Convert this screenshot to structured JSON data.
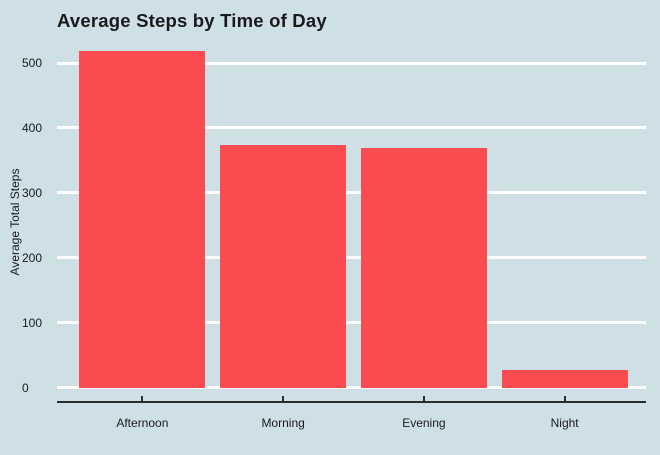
{
  "chart_data": {
    "type": "bar",
    "title": "Average Steps by Time of Day",
    "categories": [
      "Afternoon",
      "Morning",
      "Evening",
      "Night"
    ],
    "values": [
      520,
      375,
      370,
      27
    ],
    "xlabel": "",
    "ylabel": "Average Total Steps",
    "yticks": [
      0,
      100,
      200,
      300,
      400,
      500
    ],
    "ylim": [
      0,
      530
    ],
    "legend": "none",
    "grid": "horizontal gridlines on",
    "colors": {
      "background": "#CEDFE6",
      "bar": "#FA4B50",
      "gridline": "#FFFFFF",
      "axis_line": "#2B2B2B",
      "text": "#1A1A1A"
    }
  }
}
